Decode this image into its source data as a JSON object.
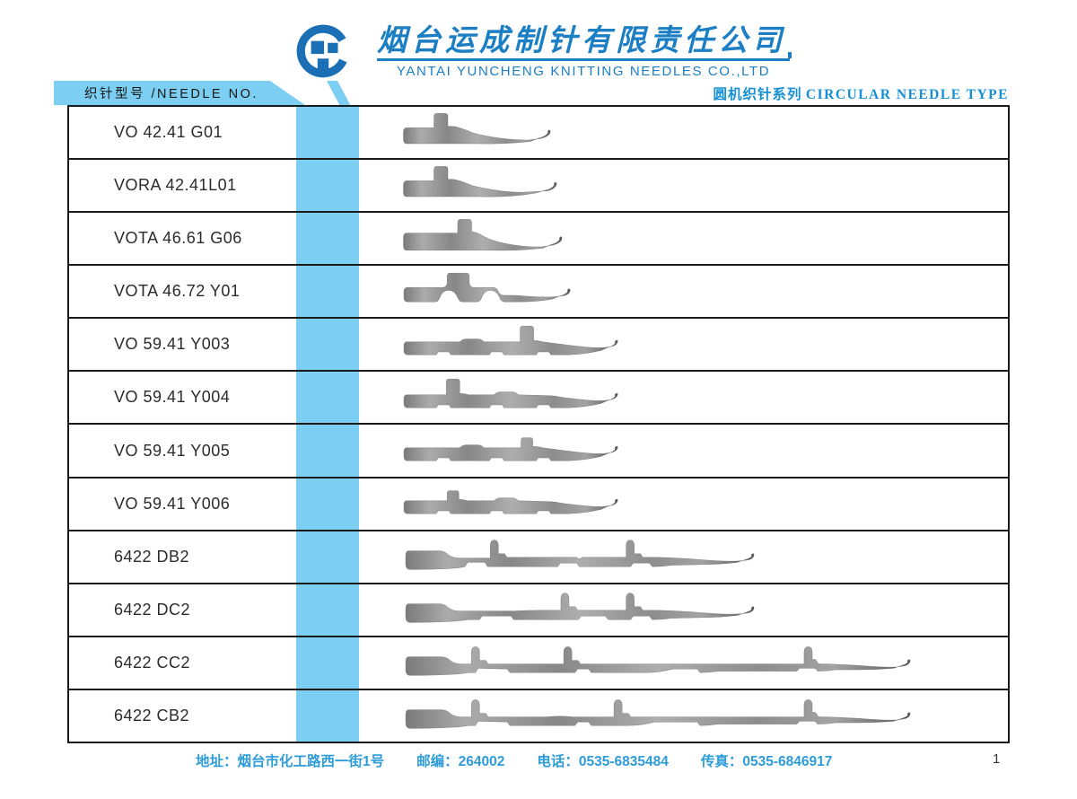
{
  "header": {
    "company_cn": "烟台运成制针有限责任公司",
    "company_en": "YANTAI YUNCHENG KNITTING NEEDLES CO.,LTD",
    "section_tab": "织针型号 /NEEDLE NO.",
    "series_title_cn": "圆机织针系列",
    "series_title_en": "CIRCULAR NEEDLE TYPE",
    "logo": "yuncheng-circle-logo"
  },
  "table": {
    "rows": [
      {
        "model": "VO 42.41 G01",
        "shape": "s1"
      },
      {
        "model": "VORA 42.41L01",
        "shape": "s2"
      },
      {
        "model": "VOTA 46.61 G06",
        "shape": "s3"
      },
      {
        "model": "VOTA 46.72 Y01",
        "shape": "s4"
      },
      {
        "model": "VO 59.41 Y003",
        "shape": "s5"
      },
      {
        "model": "VO 59.41 Y004",
        "shape": "s6"
      },
      {
        "model": "VO 59.41 Y005",
        "shape": "s7"
      },
      {
        "model": "VO 59.41 Y006",
        "shape": "s8"
      },
      {
        "model": "6422 DB2",
        "shape": "s9"
      },
      {
        "model": "6422 DC2",
        "shape": "s10"
      },
      {
        "model": "6422 CC2",
        "shape": "s11"
      },
      {
        "model": "6422 CB2",
        "shape": "s12"
      }
    ]
  },
  "footer": {
    "items": [
      "地址：烟台市化工路西一街1号",
      "邮编：264002",
      "电话：0535-6835484",
      "传真：0535-6846917"
    ],
    "page_number": "1"
  },
  "colors": {
    "accent_blue": "#1C7FC4",
    "series_blue": "#1590D5",
    "light_blue": "#7CCEF2",
    "footer_blue": "#2E9CD9",
    "logo_blue": "#1A6FB5",
    "line_black": "#1A1A1A",
    "needle_gray": "#9A9A9A"
  }
}
